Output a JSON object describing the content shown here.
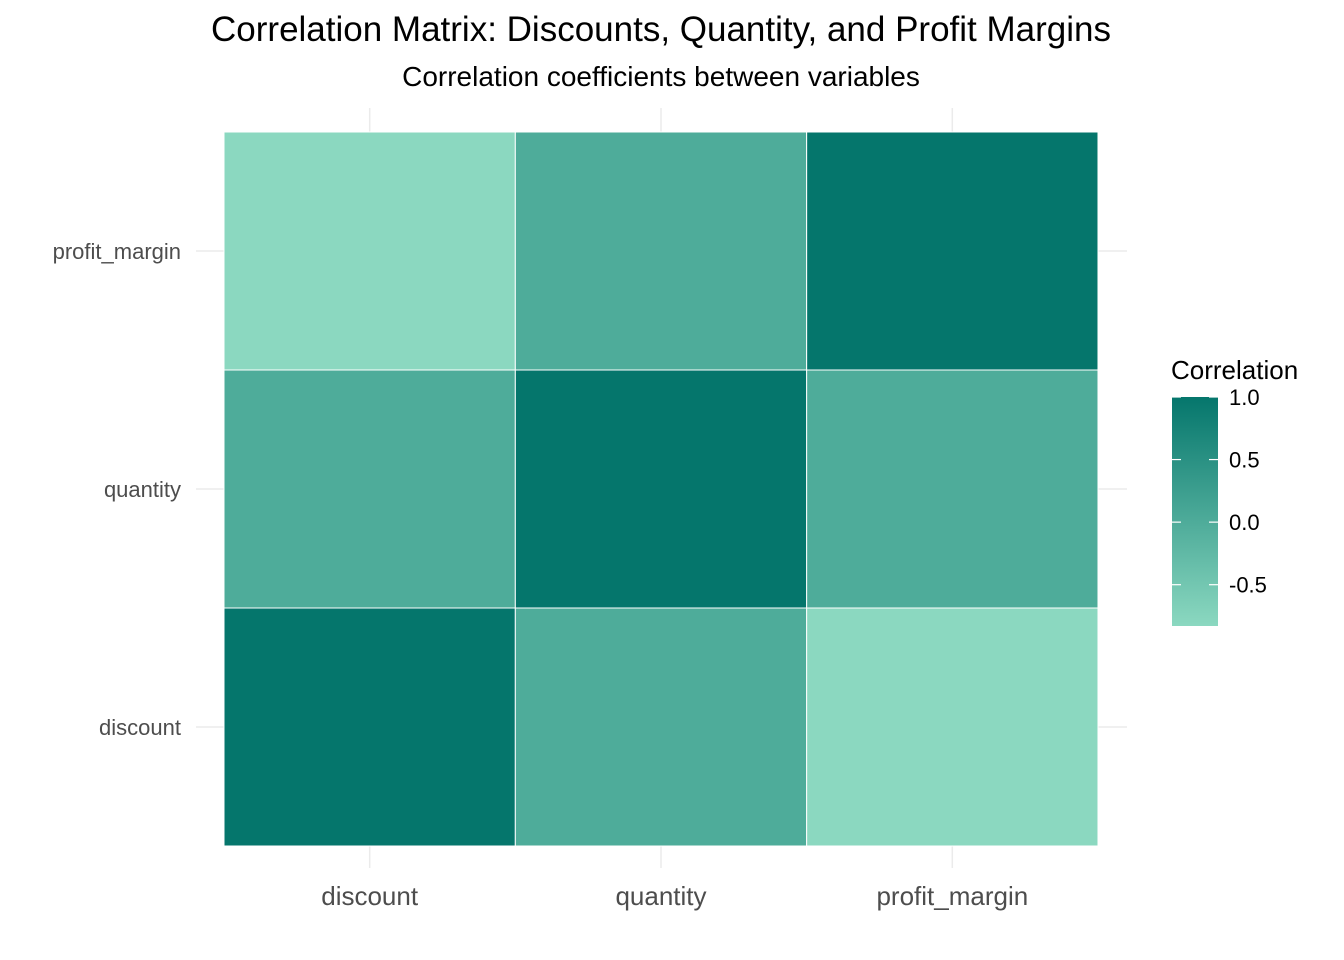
{
  "chart_data": {
    "type": "heatmap",
    "title": "Correlation Matrix: Discounts, Quantity, and Profit Margins",
    "subtitle": "Correlation coefficients between variables",
    "x_categories": [
      "discount",
      "quantity",
      "profit_margin"
    ],
    "y_categories": [
      "discount",
      "quantity",
      "profit_margin"
    ],
    "cells": [
      {
        "x": "discount",
        "y": "discount",
        "value": 1.0
      },
      {
        "x": "quantity",
        "y": "discount",
        "value": 0.0
      },
      {
        "x": "profit_margin",
        "y": "discount",
        "value": -0.83
      },
      {
        "x": "discount",
        "y": "quantity",
        "value": 0.0
      },
      {
        "x": "quantity",
        "y": "quantity",
        "value": 1.0
      },
      {
        "x": "profit_margin",
        "y": "quantity",
        "value": 0.0
      },
      {
        "x": "discount",
        "y": "profit_margin",
        "value": -0.83
      },
      {
        "x": "quantity",
        "y": "profit_margin",
        "value": 0.0
      },
      {
        "x": "profit_margin",
        "y": "profit_margin",
        "value": 1.0
      }
    ],
    "legend": {
      "title": "Correlation",
      "ticks": [
        "1.0",
        "0.5",
        "0.0",
        "-0.5"
      ],
      "tick_values": [
        1.0,
        0.5,
        0.0,
        -0.5
      ],
      "range": [
        -0.83,
        1.0
      ],
      "low_color": "#8bd8c0",
      "high_color": "#05766c",
      "placement": "right"
    },
    "grid": true
  }
}
